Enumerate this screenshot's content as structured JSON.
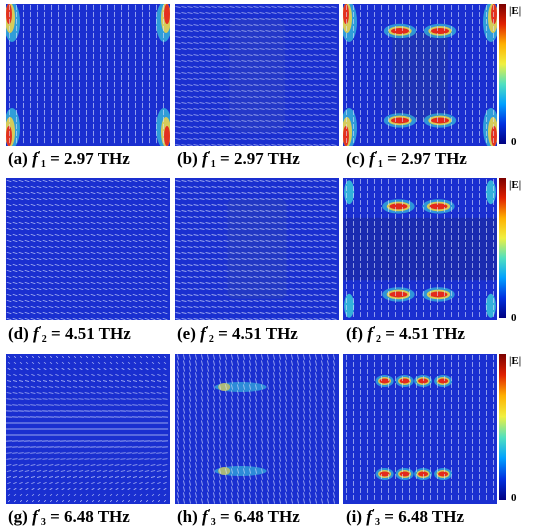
{
  "figure": {
    "rows": [
      {
        "panels": [
          {
            "id": "a",
            "letter": "(a)",
            "f_sub": "1",
            "freq_text": "= 2.97 THz"
          },
          {
            "id": "b",
            "letter": "(b)",
            "f_sub": "1",
            "freq_text": "= 2.97 THz"
          },
          {
            "id": "c",
            "letter": "(c)",
            "f_sub": "1",
            "freq_text": "= 2.97 THz"
          }
        ]
      },
      {
        "panels": [
          {
            "id": "d",
            "letter": "(d)",
            "f_sub": "2",
            "freq_text": "= 4.51 THz"
          },
          {
            "id": "e",
            "letter": "(e)",
            "f_sub": "2",
            "freq_text": "= 4.51 THz"
          },
          {
            "id": "f",
            "letter": "(f)",
            "f_sub": "2",
            "freq_text": "= 4.51 THz"
          }
        ]
      },
      {
        "panels": [
          {
            "id": "g",
            "letter": "(g)",
            "f_sub": "3",
            "freq_text": "= 6.48 THz"
          },
          {
            "id": "h",
            "letter": "(h)",
            "f_sub": "3",
            "freq_text": "= 6.48 THz"
          },
          {
            "id": "i",
            "letter": "(i)",
            "f_sub": "3",
            "freq_text": "= 6.48 THz"
          }
        ]
      }
    ],
    "f_symbol": "f",
    "prime": "'",
    "colorbar": {
      "top_label": "|E|",
      "bottom_label": "0",
      "colors": [
        "#7a0000",
        "#e02000",
        "#ffb000",
        "#f0f040",
        "#50e0c0",
        "#00a0ff",
        "#0030e0",
        "#000080"
      ]
    },
    "field_colors": {
      "background": "#1a2fd0",
      "arrow": "#dfe6ff",
      "hot": "#e4201a",
      "warm": "#ffd83a",
      "cyan": "#3fe8e0"
    }
  }
}
